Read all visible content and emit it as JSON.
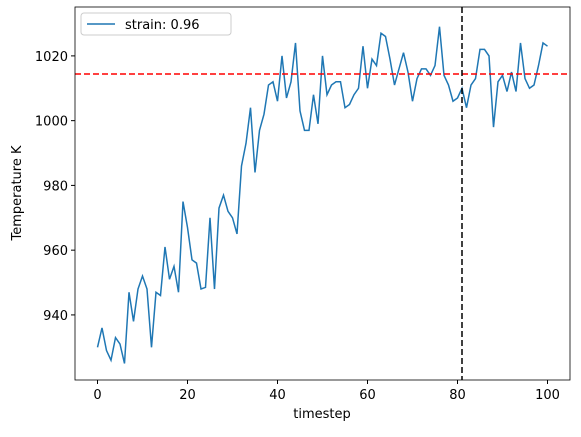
{
  "chart_data": {
    "type": "line",
    "xlabel": "timestep",
    "ylabel": "Temperature K",
    "x": [
      0,
      1,
      2,
      3,
      4,
      5,
      6,
      7,
      8,
      9,
      10,
      11,
      12,
      13,
      14,
      15,
      16,
      17,
      18,
      19,
      20,
      21,
      22,
      23,
      24,
      25,
      26,
      27,
      28,
      29,
      30,
      31,
      32,
      33,
      34,
      35,
      36,
      37,
      38,
      39,
      40,
      41,
      42,
      43,
      44,
      45,
      46,
      47,
      48,
      49,
      50,
      51,
      52,
      53,
      54,
      55,
      56,
      57,
      58,
      59,
      60,
      61,
      62,
      63,
      64,
      65,
      66,
      67,
      68,
      69,
      70,
      71,
      72,
      73,
      74,
      75,
      76,
      77,
      78,
      79,
      80,
      81,
      82,
      83,
      84,
      85,
      86,
      87,
      88,
      89,
      90,
      91,
      92,
      93,
      94,
      95,
      96,
      97,
      98,
      99,
      100
    ],
    "series": [
      {
        "name": "strain: 0.96",
        "color": "#1f77b4",
        "values": [
          930,
          936,
          929,
          926,
          933,
          931,
          925,
          947,
          938,
          948,
          952,
          948,
          930,
          947,
          946,
          961,
          951,
          955,
          947,
          975,
          967,
          957,
          956,
          948,
          948.5,
          970,
          948,
          973,
          977,
          972,
          970,
          965,
          986,
          993,
          1004,
          984,
          997,
          1002,
          1011,
          1012,
          1006,
          1020,
          1007,
          1012,
          1024,
          1003,
          997,
          997,
          1008,
          999,
          1020,
          1008,
          1011,
          1012,
          1012,
          1004,
          1005,
          1008,
          1010,
          1023,
          1010,
          1019,
          1017,
          1027,
          1026,
          1019,
          1011,
          1016,
          1021,
          1015,
          1006,
          1013,
          1016,
          1016,
          1014,
          1017,
          1029,
          1014,
          1011,
          1006,
          1007,
          1010,
          1004,
          1011,
          1013,
          1022,
          1022,
          1020,
          998,
          1012,
          1014,
          1009,
          1015,
          1009,
          1024,
          1013,
          1010,
          1011,
          1017,
          1024,
          1023
        ]
      }
    ],
    "hlines": [
      {
        "value": 1014.4,
        "color": "#ff0000"
      }
    ],
    "vlines": [
      {
        "value": 81,
        "color": "#000000"
      }
    ],
    "xlim": [
      -5,
      105
    ],
    "ylim": [
      919.9,
      1035.1
    ],
    "xticks": [
      0,
      20,
      40,
      60,
      80,
      100
    ],
    "yticks": [
      940,
      960,
      980,
      1000,
      1020
    ],
    "grid": false,
    "legend": "upper left"
  }
}
